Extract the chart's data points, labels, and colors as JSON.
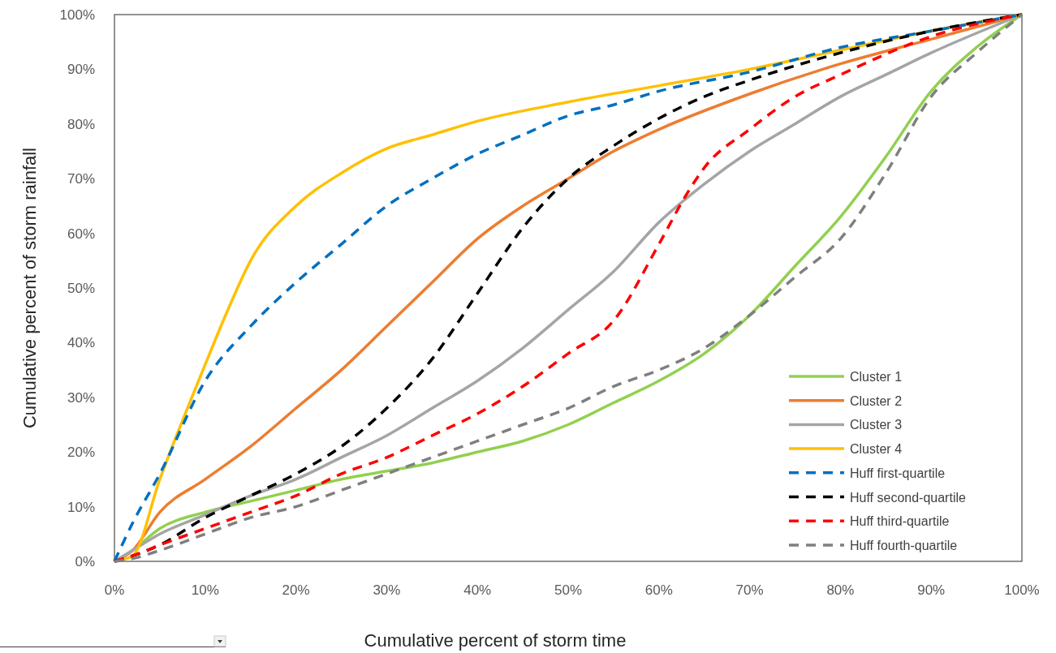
{
  "chart_data": {
    "type": "line",
    "xlabel": "Cumulative percent of storm time",
    "ylabel": "Cumulative percent of storm rainfall",
    "xlim": [
      0,
      100
    ],
    "ylim": [
      0,
      100
    ],
    "xticks": [
      {
        "value": 0,
        "label": "0%"
      },
      {
        "value": 10,
        "label": "10%"
      },
      {
        "value": 20,
        "label": "20%"
      },
      {
        "value": 30,
        "label": "30%"
      },
      {
        "value": 40,
        "label": "40%"
      },
      {
        "value": 50,
        "label": "50%"
      },
      {
        "value": 60,
        "label": "60%"
      },
      {
        "value": 70,
        "label": "70%"
      },
      {
        "value": 80,
        "label": "80%"
      },
      {
        "value": 90,
        "label": "90%"
      },
      {
        "value": 100,
        "label": "100%"
      }
    ],
    "yticks": [
      {
        "value": 0,
        "label": "0%"
      },
      {
        "value": 10,
        "label": "10%"
      },
      {
        "value": 20,
        "label": "20%"
      },
      {
        "value": 30,
        "label": "30%"
      },
      {
        "value": 40,
        "label": "40%"
      },
      {
        "value": 50,
        "label": "50%"
      },
      {
        "value": 60,
        "label": "60%"
      },
      {
        "value": 70,
        "label": "70%"
      },
      {
        "value": 80,
        "label": "80%"
      },
      {
        "value": 90,
        "label": "90%"
      },
      {
        "value": 100,
        "label": "100%"
      }
    ],
    "grid": false,
    "legend": "bottom right",
    "marker": "none",
    "series": [
      {
        "name": "Cluster 1",
        "color": "#92d050",
        "line_style": "solid",
        "x": [
          0,
          2,
          5,
          10,
          15,
          20,
          25,
          30,
          35,
          40,
          45,
          50,
          55,
          60,
          65,
          70,
          75,
          80,
          85,
          90,
          95,
          100
        ],
        "values": [
          0,
          2,
          6,
          9,
          11,
          13,
          15,
          16.5,
          18,
          20,
          22,
          25,
          29,
          33,
          38,
          45,
          54,
          63,
          74,
          86,
          94,
          100
        ]
      },
      {
        "name": "Cluster 2",
        "color": "#ed7d31",
        "line_style": "solid",
        "x": [
          0,
          2,
          5,
          10,
          15,
          20,
          25,
          30,
          35,
          40,
          45,
          50,
          55,
          60,
          70,
          80,
          90,
          100
        ],
        "values": [
          0,
          2,
          9,
          15,
          21,
          28,
          35,
          43,
          51,
          59,
          65,
          70,
          75,
          79,
          85.5,
          91,
          95.5,
          100
        ]
      },
      {
        "name": "Cluster 3",
        "color": "#a5a5a5",
        "line_style": "solid",
        "x": [
          0,
          2,
          5,
          10,
          15,
          20,
          25,
          30,
          35,
          40,
          45,
          50,
          55,
          60,
          65,
          70,
          75,
          80,
          85,
          90,
          100
        ],
        "values": [
          0,
          2,
          5,
          8.5,
          12,
          15,
          19,
          23,
          28,
          33,
          39,
          46,
          53,
          62,
          69,
          75,
          80,
          85,
          89,
          93,
          100
        ]
      },
      {
        "name": "Cluster 4",
        "color": "#ffc000",
        "line_style": "solid",
        "x": [
          0,
          2,
          5,
          10,
          12.5,
          15,
          20,
          25,
          30,
          35,
          40,
          50,
          60,
          70,
          80,
          90,
          100
        ],
        "values": [
          0,
          1,
          15,
          36,
          46,
          55,
          65,
          71,
          75.5,
          78,
          80.5,
          84,
          87,
          90,
          93.5,
          97,
          100
        ]
      },
      {
        "name": "Huff first-quartile",
        "color": "#0070c0",
        "line_style": "dashed",
        "x": [
          0,
          2,
          5,
          10,
          15,
          20,
          25,
          30,
          35,
          40,
          45,
          50,
          55,
          60,
          70,
          80,
          90,
          100
        ],
        "values": [
          0,
          7,
          16,
          33,
          43,
          51,
          58,
          65,
          70,
          74.5,
          78,
          81.5,
          83.5,
          86,
          89.5,
          94,
          97,
          100
        ]
      },
      {
        "name": "Huff second-quartile",
        "color": "#000000",
        "line_style": "dashed",
        "x": [
          0,
          2,
          5,
          10,
          15,
          20,
          25,
          30,
          35,
          40,
          45,
          50,
          55,
          60,
          65,
          70,
          80,
          90,
          100
        ],
        "values": [
          0,
          1,
          3,
          8,
          12,
          16,
          21,
          28,
          37,
          49,
          61,
          70,
          76,
          81,
          85,
          88,
          93,
          97,
          100
        ]
      },
      {
        "name": "Huff third-quartile",
        "color": "#ff0000",
        "line_style": "dashed",
        "x": [
          0,
          2,
          5,
          10,
          15,
          20,
          25,
          30,
          35,
          40,
          45,
          50,
          55,
          60,
          63,
          65,
          70,
          75,
          80,
          90,
          100
        ],
        "values": [
          0,
          1,
          3,
          6,
          9,
          12,
          16,
          19,
          23,
          27,
          32,
          38,
          44,
          58,
          67,
          72,
          79,
          85,
          89,
          96,
          100
        ]
      },
      {
        "name": "Huff fourth-quartile",
        "color": "#7f7f7f",
        "line_style": "dashed",
        "x": [
          0,
          2,
          5,
          10,
          15,
          20,
          25,
          30,
          35,
          40,
          45,
          50,
          55,
          60,
          65,
          70,
          75,
          80,
          85,
          90,
          95,
          100
        ],
        "values": [
          0,
          0.5,
          2,
          5,
          8,
          10,
          13,
          16,
          19,
          22,
          25,
          28,
          32,
          35,
          39,
          45,
          52,
          59,
          71,
          85,
          93,
          100
        ]
      }
    ]
  }
}
